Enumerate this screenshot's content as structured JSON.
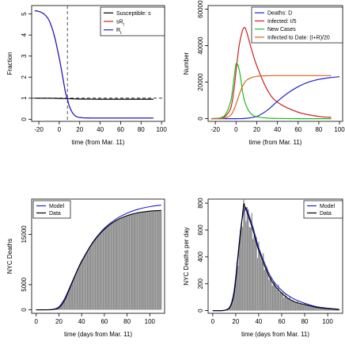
{
  "chart_data": [
    {
      "type": "line",
      "xlabel": "time (from Mar. 11)",
      "ylabel": "Fraction",
      "xlim": [
        -27,
        103
      ],
      "ylim": [
        -0.1,
        5.4
      ],
      "xticks": [
        "-20",
        "0",
        "20",
        "40",
        "60",
        "80",
        "100"
      ],
      "yticks": [
        "0",
        "1",
        "2",
        "3",
        "4",
        "5"
      ],
      "legend_position": "top-right",
      "reference_lines": {
        "vertical_x": 8,
        "horizontal_y": 1,
        "style": "dashed"
      },
      "series": [
        {
          "name": "Susceptible: s",
          "color": "#000000",
          "x": [
            -24,
            -10,
            0,
            8,
            20,
            40,
            60,
            92
          ],
          "y": [
            1.0,
            1.0,
            0.99,
            0.98,
            0.96,
            0.95,
            0.95,
            0.95
          ]
        },
        {
          "name": "sR",
          "sub": "t",
          "color": "#cc2222",
          "x": [
            -24,
            -20,
            -15,
            -10,
            -5,
            0,
            3,
            6,
            8,
            10,
            13,
            16,
            20,
            30,
            40,
            60,
            92
          ],
          "y": [
            5.15,
            5.12,
            5.0,
            4.7,
            4.0,
            2.9,
            2.1,
            1.3,
            0.95,
            0.6,
            0.3,
            0.15,
            0.08,
            0.06,
            0.06,
            0.06,
            0.06
          ]
        },
        {
          "name": "R",
          "sub": "t",
          "color": "#2222cc",
          "x": [
            -24,
            -20,
            -15,
            -10,
            -5,
            0,
            3,
            6,
            8,
            10,
            13,
            16,
            20,
            30,
            40,
            60,
            92
          ],
          "y": [
            5.15,
            5.12,
            5.0,
            4.7,
            4.0,
            2.9,
            2.1,
            1.3,
            0.95,
            0.6,
            0.3,
            0.15,
            0.08,
            0.06,
            0.06,
            0.06,
            0.06
          ]
        }
      ]
    },
    {
      "type": "line",
      "xlabel": "time (from Mar. 11)",
      "ylabel": "Number",
      "xlim": [
        -27,
        103
      ],
      "ylim": [
        -1500,
        62000
      ],
      "xticks": [
        "-20",
        "0",
        "20",
        "40",
        "60",
        "80",
        "100"
      ],
      "yticks": [
        "0",
        "20000",
        "40000",
        "60000"
      ],
      "legend_position": "top-right",
      "series": [
        {
          "name": "Deaths: D",
          "color": "#2222cc",
          "x": [
            -24,
            0,
            10,
            20,
            30,
            40,
            50,
            60,
            70,
            80,
            90,
            100
          ],
          "y": [
            0,
            0,
            200,
            1200,
            4500,
            9500,
            14000,
            17500,
            20000,
            21500,
            22400,
            23000
          ]
        },
        {
          "name": "Infected: I/5",
          "color": "#cc2222",
          "x": [
            -24,
            -15,
            -10,
            -5,
            -2,
            0,
            3,
            6,
            8,
            10,
            15,
            20,
            30,
            40,
            60,
            80,
            92
          ],
          "y": [
            0,
            300,
            1500,
            6000,
            16000,
            26000,
            40000,
            48000,
            50000,
            48000,
            38000,
            29000,
            16000,
            9000,
            3500,
            1200,
            700
          ]
        },
        {
          "name": "New Cases",
          "color": "#22bb22",
          "x": [
            -24,
            -15,
            -10,
            -5,
            -2,
            0,
            2,
            4,
            6,
            8,
            12,
            16,
            20,
            30,
            40,
            60,
            92
          ],
          "y": [
            0,
            500,
            2500,
            10000,
            22000,
            30000,
            29000,
            24000,
            16000,
            10000,
            4500,
            2000,
            1000,
            300,
            100,
            0,
            0
          ]
        },
        {
          "name": "Infected to Date: (I+R)/20",
          "color": "#d2691e",
          "x": [
            -24,
            -15,
            -10,
            -5,
            -2,
            0,
            3,
            6,
            8,
            10,
            15,
            20,
            30,
            40,
            60,
            80,
            92
          ],
          "y": [
            0,
            100,
            500,
            2000,
            5000,
            8000,
            13000,
            17500,
            19500,
            21000,
            22500,
            23200,
            23500,
            23600,
            23600,
            23600,
            23600
          ]
        }
      ]
    },
    {
      "type": "area",
      "xlabel": "time (days from Mar. 11)",
      "ylabel": "NYC Deaths",
      "xlim": [
        -4,
        113
      ],
      "ylim": [
        -700,
        22000
      ],
      "xticks": [
        "0",
        "20",
        "40",
        "60",
        "80",
        "100"
      ],
      "yticks": [
        "0",
        "5000",
        "15000"
      ],
      "legend_position": "top-left",
      "series": [
        {
          "name": "Model",
          "color": "#2222cc",
          "x": [
            0,
            10,
            15,
            20,
            25,
            30,
            35,
            40,
            50,
            60,
            70,
            80,
            90,
            100,
            110
          ],
          "y": [
            0,
            10,
            100,
            600,
            2200,
            4700,
            7300,
            9700,
            13500,
            16200,
            18000,
            19200,
            20000,
            20500,
            20800
          ]
        },
        {
          "name": "Data",
          "color": "#000000",
          "x": [
            0,
            10,
            15,
            20,
            25,
            30,
            35,
            40,
            50,
            60,
            70,
            80,
            90,
            100,
            110
          ],
          "y": [
            0,
            5,
            50,
            400,
            1900,
            4500,
            7200,
            9600,
            13400,
            16000,
            17700,
            18700,
            19300,
            19600,
            19750
          ]
        }
      ]
    },
    {
      "type": "area",
      "xlabel": "time (days from Mar. 11)",
      "ylabel": "NYC Deaths per day",
      "xlim": [
        -4,
        113
      ],
      "ylim": [
        -20,
        830
      ],
      "xticks": [
        "0",
        "20",
        "40",
        "60",
        "80",
        "100"
      ],
      "yticks": [
        "0",
        "200",
        "400",
        "600",
        "800"
      ],
      "legend_position": "top-right",
      "series": [
        {
          "name": "Model",
          "color": "#2222cc",
          "x": [
            0,
            10,
            15,
            18,
            20,
            22,
            25,
            28,
            30,
            35,
            40,
            50,
            60,
            70,
            80,
            90,
            100,
            110
          ],
          "y": [
            0,
            2,
            30,
            120,
            250,
            420,
            650,
            760,
            745,
            620,
            470,
            260,
            150,
            90,
            55,
            30,
            18,
            10
          ]
        },
        {
          "name": "Data",
          "color": "#000000",
          "x": [
            0,
            10,
            15,
            18,
            20,
            22,
            25,
            27,
            28,
            30,
            35,
            40,
            50,
            60,
            70,
            80,
            90,
            100,
            110
          ],
          "y": [
            0,
            2,
            25,
            100,
            220,
            400,
            640,
            790,
            770,
            730,
            600,
            450,
            240,
            130,
            70,
            45,
            25,
            15,
            8
          ]
        }
      ]
    }
  ]
}
